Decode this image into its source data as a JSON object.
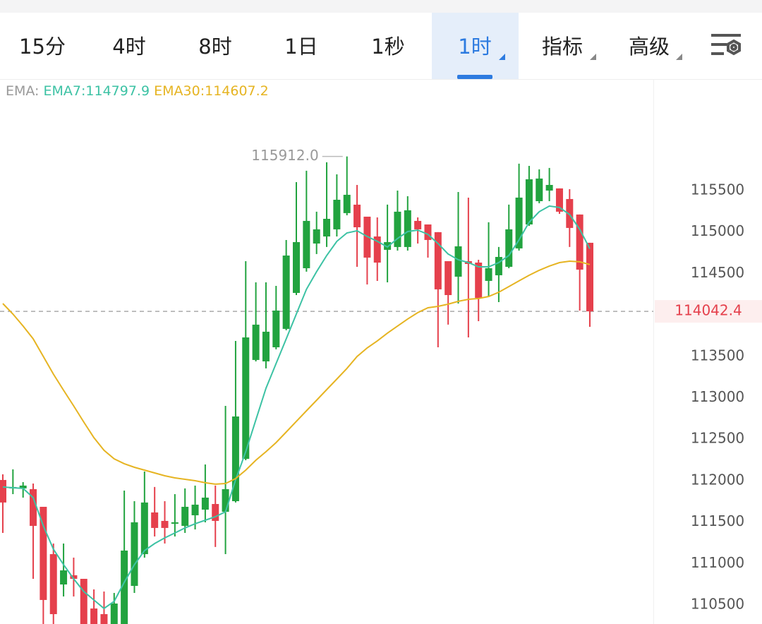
{
  "tabs": [
    "15分",
    "4时",
    "8时",
    "1日",
    "1秒",
    "1时",
    "指标",
    "高级"
  ],
  "selected_tab": 5,
  "chart_data": {
    "type": "candlestick",
    "legend_prefix": "EMA:",
    "legend_separator": ":",
    "high_value_label": "115912.0",
    "up_color": "#22a33f",
    "down_color": "#e5404c",
    "open": [
      112008,
      111906,
      111906,
      111897,
      111684,
      111113,
      110747,
      110858,
      110815,
      110457,
      110389,
      110200,
      110250,
      110730,
      111113,
      111616,
      111514,
      111480,
      111454,
      111582,
      111650,
      111718,
      111624,
      111752,
      112263,
      113456,
      113439,
      113609,
      113831,
      114265,
      114563,
      114861,
      114946,
      115032,
      115228,
      115330,
      115185,
      114946,
      114785,
      114819,
      114819,
      115134,
      115091,
      114998,
      114648,
      114461,
      114648,
      114631,
      114410,
      114478,
      114580,
      114802,
      115091,
      115372,
      115500,
      115526,
      115398,
      115211,
      114870
    ],
    "high": [
      112076,
      112136,
      111982,
      111965,
      111684,
      111241,
      111241,
      111071,
      110815,
      110687,
      110662,
      110645,
      111880,
      111752,
      112110,
      111923,
      111752,
      111837,
      111906,
      111940,
      112195,
      111940,
      112902,
      113686,
      114648,
      114393,
      114393,
      114350,
      114904,
      115602,
      115739,
      115245,
      115841,
      115696,
      115912,
      115568,
      115185,
      115176,
      115330,
      115500,
      115432,
      115176,
      115091,
      114998,
      114648,
      115483,
      115415,
      114665,
      115117,
      114819,
      115330,
      115824,
      115798,
      115756,
      115773,
      115526,
      115517,
      115211,
      114870
    ],
    "low": [
      111369,
      111837,
      111795,
      110815,
      110200,
      110200,
      110602,
      110602,
      110000,
      110100,
      110150,
      110100,
      110150,
      110645,
      111071,
      111326,
      111241,
      111326,
      111369,
      111411,
      111497,
      111199,
      111113,
      111736,
      112246,
      113439,
      113354,
      113584,
      113814,
      114239,
      114521,
      114734,
      114819,
      114946,
      115202,
      114580,
      114367,
      114410,
      114393,
      114776,
      114776,
      114861,
      114691,
      113609,
      113882,
      114137,
      113728,
      113924,
      114222,
      114154,
      114563,
      114776,
      115074,
      115347,
      115372,
      115219,
      114819,
      114052,
      113856
    ],
    "close": [
      111736,
      111923,
      111940,
      111454,
      110560,
      110389,
      110917,
      110815,
      110150,
      110200,
      110250,
      110517,
      111156,
      111497,
      111736,
      111429,
      111429,
      111497,
      111684,
      111710,
      111795,
      111514,
      111897,
      112774,
      113728,
      113882,
      113797,
      114052,
      114716,
      114878,
      115134,
      115032,
      115159,
      115389,
      115449,
      115057,
      114691,
      114631,
      114878,
      115245,
      115262,
      115032,
      114904,
      114308,
      114239,
      114827,
      114614,
      114205,
      114563,
      114699,
      115032,
      115415,
      115636,
      115645,
      115568,
      115245,
      115049,
      114546,
      114042.4
    ],
    "series": [
      {
        "name": "EMA7",
        "color": "#3cc2a4",
        "values": [
          111923,
          111914,
          111906,
          111795,
          111454,
          111173,
          110986,
          110815,
          110662,
          110560,
          110457,
          110543,
          110773,
          110986,
          111156,
          111241,
          111309,
          111369,
          111429,
          111480,
          111522,
          111565,
          111624,
          112008,
          112349,
          112732,
          113115,
          113413,
          113711,
          114010,
          114308,
          114521,
          114716,
          114887,
          114989,
          115015,
          114946,
          114887,
          114819,
          114921,
          115006,
          115023,
          114972,
          114861,
          114734,
          114665,
          114631,
          114580,
          114580,
          114631,
          114716,
          114904,
          115117,
          115245,
          115313,
          115296,
          115211,
          115032,
          114797.9
        ]
      },
      {
        "name": "EMA30",
        "color": "#e6b422",
        "values": [
          114137,
          114010,
          113865,
          113711,
          113498,
          113285,
          113090,
          112902,
          112706,
          112519,
          112366,
          112263,
          112204,
          112161,
          112127,
          112093,
          112059,
          112033,
          112016,
          111999,
          111974,
          111957,
          111965,
          112025,
          112127,
          112246,
          112349,
          112459,
          112587,
          112715,
          112842,
          112970,
          113098,
          113226,
          113354,
          113498,
          113601,
          113686,
          113780,
          113865,
          113950,
          114027,
          114086,
          114103,
          114129,
          114163,
          114188,
          114197,
          114222,
          114273,
          114341,
          114410,
          114478,
          114538,
          114589,
          114631,
          114648,
          114640,
          114607.2
        ]
      }
    ],
    "ylim": [
      110270,
      116837
    ],
    "yticks": [
      110500,
      111000,
      111500,
      112000,
      112500,
      113000,
      113500,
      114000,
      114500,
      115000,
      115500
    ],
    "grid": true
  }
}
